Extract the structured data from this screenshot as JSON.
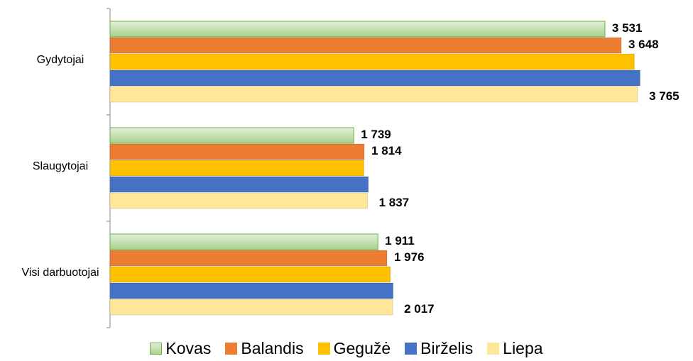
{
  "chart_data": {
    "type": "hbar",
    "categories": [
      "Gydytojai",
      "Slaugytojai",
      "Visi darbuotojai"
    ],
    "series": [
      {
        "name": "Kovas",
        "color": "#a9d18e",
        "values": [
          3531,
          1739,
          1911
        ],
        "value_labels": [
          "3 531",
          "1 739",
          "1 911"
        ]
      },
      {
        "name": "Balandis",
        "color": "#ed7d31",
        "values": [
          3648,
          1814,
          1976
        ],
        "value_labels": [
          "3 648",
          "1 814",
          "1 976"
        ]
      },
      {
        "name": "Gegužė",
        "color": "#ffc000",
        "values": [
          3741,
          1812,
          2000
        ]
      },
      {
        "name": "Birželis",
        "color": "#4472c4",
        "values": [
          3782,
          1843,
          2020
        ]
      },
      {
        "name": "Liepa",
        "color": "#ffe699",
        "values": [
          3765,
          1837,
          2017
        ],
        "value_labels": [
          "3 765",
          "1 837",
          "2 017"
        ]
      }
    ],
    "xlim": [
      0,
      3800
    ],
    "legend": "bottom"
  }
}
